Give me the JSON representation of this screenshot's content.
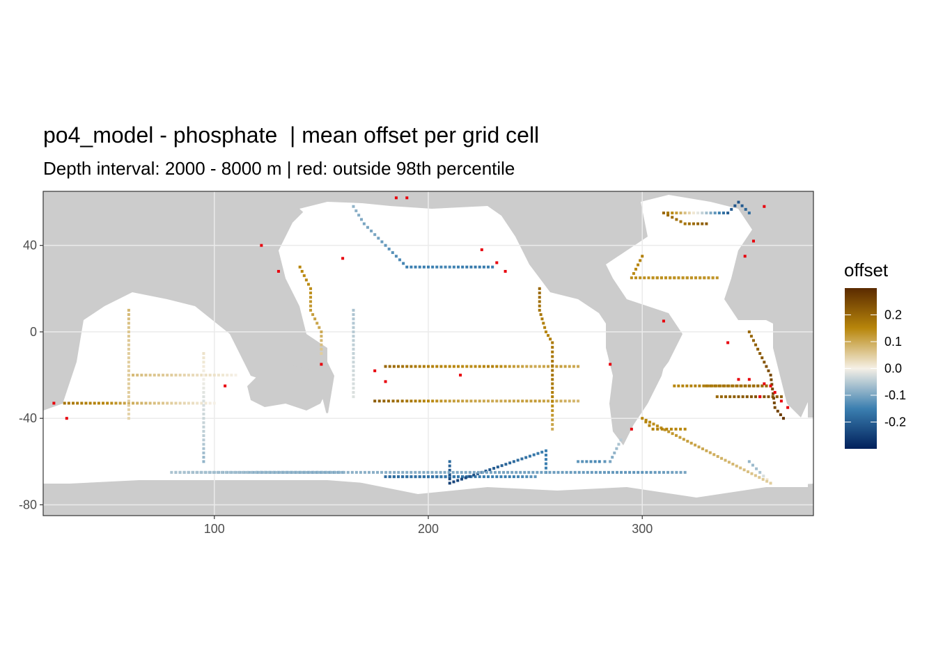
{
  "chart_data": {
    "type": "heatmap",
    "title": "po4_model - phosphate  | mean offset per grid cell",
    "subtitle": "Depth interval: 2000 - 8000 m | red: outside 98th percentile",
    "xlabel": "",
    "ylabel": "",
    "xlim": [
      20,
      380
    ],
    "ylim": [
      -85,
      65
    ],
    "x_ticks": [
      100,
      200,
      300
    ],
    "y_ticks": [
      40,
      0,
      -40,
      -80
    ],
    "grid": true,
    "legend": {
      "title": "offset",
      "placement": "right",
      "range": [
        -0.3,
        0.3
      ],
      "ticks": [
        0.2,
        0.1,
        0.0,
        -0.1,
        -0.2
      ],
      "tick_labels": [
        "0.2",
        "0.1",
        "0.0",
        "-0.1",
        "-0.2"
      ]
    },
    "colors": {
      "land": "#cccccc",
      "ocean": "#ffffff",
      "outlier": "#e8000b",
      "scale_high": "#5a2a00",
      "scale_mid_high": "#b8860b",
      "scale_mid": "#f5f0e6",
      "scale_mid_low": "#3b7fb0",
      "scale_low": "#00205b"
    },
    "series": [
      {
        "points": [
          [
            165,
            58,
            -0.08
          ],
          [
            170,
            50,
            -0.1
          ],
          [
            175,
            45,
            -0.1
          ],
          [
            180,
            40,
            -0.12
          ],
          [
            185,
            35,
            -0.13
          ],
          [
            190,
            30,
            -0.15
          ],
          [
            200,
            30,
            -0.15
          ],
          [
            210,
            30,
            -0.14
          ],
          [
            220,
            30,
            -0.16
          ],
          [
            230,
            30,
            -0.15
          ]
        ]
      },
      {
        "points": [
          [
            165,
            10,
            -0.06
          ],
          [
            165,
            0,
            -0.05
          ],
          [
            165,
            -10,
            -0.04
          ],
          [
            165,
            -20,
            -0.03
          ],
          [
            165,
            -30,
            -0.02
          ]
        ]
      },
      {
        "points": [
          [
            180,
            -16,
            0.2
          ],
          [
            190,
            -16,
            0.18
          ],
          [
            200,
            -16,
            0.16
          ],
          [
            210,
            -16,
            0.15
          ],
          [
            220,
            -16,
            0.14
          ],
          [
            230,
            -16,
            0.16
          ],
          [
            240,
            -16,
            0.12
          ],
          [
            250,
            -16,
            0.1
          ],
          [
            260,
            -16,
            0.12
          ],
          [
            270,
            -16,
            0.1
          ]
        ]
      },
      {
        "points": [
          [
            175,
            -32,
            0.22
          ],
          [
            190,
            -32,
            0.18
          ],
          [
            210,
            -32,
            0.12
          ],
          [
            230,
            -32,
            0.1
          ],
          [
            250,
            -32,
            0.12
          ],
          [
            270,
            -32,
            0.08
          ]
        ]
      },
      {
        "points": [
          [
            200,
            -67,
            -0.2
          ],
          [
            210,
            -67,
            -0.22
          ],
          [
            220,
            -67,
            -0.2
          ],
          [
            180,
            -67,
            -0.18
          ],
          [
            230,
            -67,
            -0.15
          ],
          [
            240,
            -67,
            -0.15
          ],
          [
            250,
            -67,
            -0.12
          ]
        ]
      },
      {
        "points": [
          [
            210,
            -60,
            -0.18
          ],
          [
            210,
            -70,
            -0.25
          ],
          [
            255,
            -55,
            -0.15
          ],
          [
            255,
            -65,
            -0.15
          ]
        ]
      },
      {
        "points": [
          [
            252,
            20,
            0.2
          ],
          [
            252,
            10,
            0.18
          ],
          [
            255,
            0,
            0.15
          ],
          [
            258,
            -5,
            0.17
          ],
          [
            258,
            -20,
            0.18
          ],
          [
            258,
            -30,
            0.16
          ],
          [
            258,
            -45,
            0.1
          ]
        ]
      },
      {
        "points": [
          [
            305,
            25,
            0.15
          ],
          [
            315,
            25,
            0.14
          ],
          [
            325,
            25,
            0.12
          ],
          [
            335,
            25,
            0.13
          ],
          [
            295,
            25,
            0.14
          ],
          [
            300,
            35,
            0.16
          ]
        ]
      },
      {
        "points": [
          [
            330,
            -25,
            0.18
          ],
          [
            340,
            -25,
            0.2
          ],
          [
            350,
            -25,
            0.22
          ],
          [
            360,
            -25,
            0.2
          ],
          [
            315,
            -25,
            0.15
          ]
        ]
      },
      {
        "points": [
          [
            335,
            -30,
            0.2
          ],
          [
            345,
            -30,
            0.22
          ],
          [
            355,
            -30,
            0.24
          ],
          [
            365,
            -30,
            0.22
          ]
        ]
      },
      {
        "points": [
          [
            350,
            0,
            0.2
          ],
          [
            355,
            -10,
            0.22
          ],
          [
            360,
            -20,
            0.25
          ],
          [
            362,
            -35,
            0.25
          ],
          [
            366,
            -40,
            0.28
          ]
        ]
      },
      {
        "points": [
          [
            330,
            50,
            0.22
          ],
          [
            320,
            50,
            0.18
          ],
          [
            310,
            55,
            0.2
          ],
          [
            340,
            55,
            -0.2
          ],
          [
            345,
            60,
            -0.22
          ],
          [
            350,
            55,
            -0.18
          ]
        ]
      },
      {
        "points": [
          [
            60,
            -20,
            0.08
          ],
          [
            70,
            -20,
            0.06
          ],
          [
            80,
            -20,
            0.05
          ],
          [
            90,
            -20,
            0.03
          ],
          [
            100,
            -20,
            0.02
          ],
          [
            110,
            -20,
            0.0
          ]
        ]
      },
      {
        "points": [
          [
            30,
            -33,
            0.18
          ],
          [
            40,
            -33,
            0.16
          ],
          [
            50,
            -33,
            0.15
          ],
          [
            60,
            -33,
            0.1
          ],
          [
            80,
            -33,
            0.05
          ],
          [
            100,
            -33,
            0.0
          ]
        ]
      },
      {
        "points": [
          [
            60,
            10,
            0.08
          ],
          [
            60,
            0,
            0.06
          ],
          [
            60,
            -10,
            0.05
          ],
          [
            60,
            -30,
            0.05
          ],
          [
            60,
            -40,
            0.04
          ]
        ]
      },
      {
        "points": [
          [
            95,
            -10,
            0.02
          ],
          [
            95,
            -30,
            -0.02
          ],
          [
            95,
            -50,
            -0.05
          ],
          [
            95,
            -60,
            -0.08
          ]
        ]
      },
      {
        "points": [
          [
            140,
            30,
            0.15
          ],
          [
            145,
            20,
            0.14
          ],
          [
            145,
            10,
            0.12
          ],
          [
            150,
            0,
            0.1
          ],
          [
            150,
            -10,
            0.05
          ]
        ]
      },
      {
        "points": [
          [
            120,
            -65,
            -0.12
          ],
          [
            140,
            -65,
            -0.14
          ],
          [
            160,
            -65,
            -0.1
          ],
          [
            100,
            -65,
            -0.08
          ],
          [
            80,
            -65,
            -0.06
          ],
          [
            300,
            -65,
            -0.12
          ],
          [
            320,
            -65,
            -0.1
          ]
        ]
      },
      {
        "points": [
          [
            350,
            -60,
            -0.08
          ],
          [
            355,
            -65,
            -0.06
          ],
          [
            360,
            -70,
            0.05
          ],
          [
            300,
            -40,
            0.15
          ],
          [
            305,
            -45,
            0.16
          ],
          [
            320,
            -45,
            0.15
          ]
        ]
      },
      {
        "points": [
          [
            270,
            -60,
            -0.12
          ],
          [
            280,
            -60,
            -0.14
          ],
          [
            285,
            -60,
            -0.1
          ],
          [
            290,
            -50,
            -0.05
          ]
        ]
      }
    ],
    "outliers": [
      [
        185,
        62
      ],
      [
        190,
        62
      ],
      [
        225,
        38
      ],
      [
        232,
        32
      ],
      [
        236,
        28
      ],
      [
        160,
        34
      ],
      [
        150,
        -15
      ],
      [
        175,
        -18
      ],
      [
        180,
        -23
      ],
      [
        215,
        -20
      ],
      [
        285,
        -15
      ],
      [
        295,
        -45
      ],
      [
        310,
        5
      ],
      [
        340,
        -5
      ],
      [
        345,
        -22
      ],
      [
        350,
        -22
      ],
      [
        357,
        -24
      ],
      [
        360,
        -25
      ],
      [
        362,
        -28
      ],
      [
        365,
        -32
      ],
      [
        368,
        -35
      ],
      [
        355,
        -30
      ],
      [
        25,
        -33
      ],
      [
        31,
        -40
      ],
      [
        122,
        40
      ],
      [
        130,
        28
      ],
      [
        105,
        -25
      ],
      [
        348,
        35
      ],
      [
        352,
        42
      ],
      [
        357,
        58
      ]
    ]
  }
}
